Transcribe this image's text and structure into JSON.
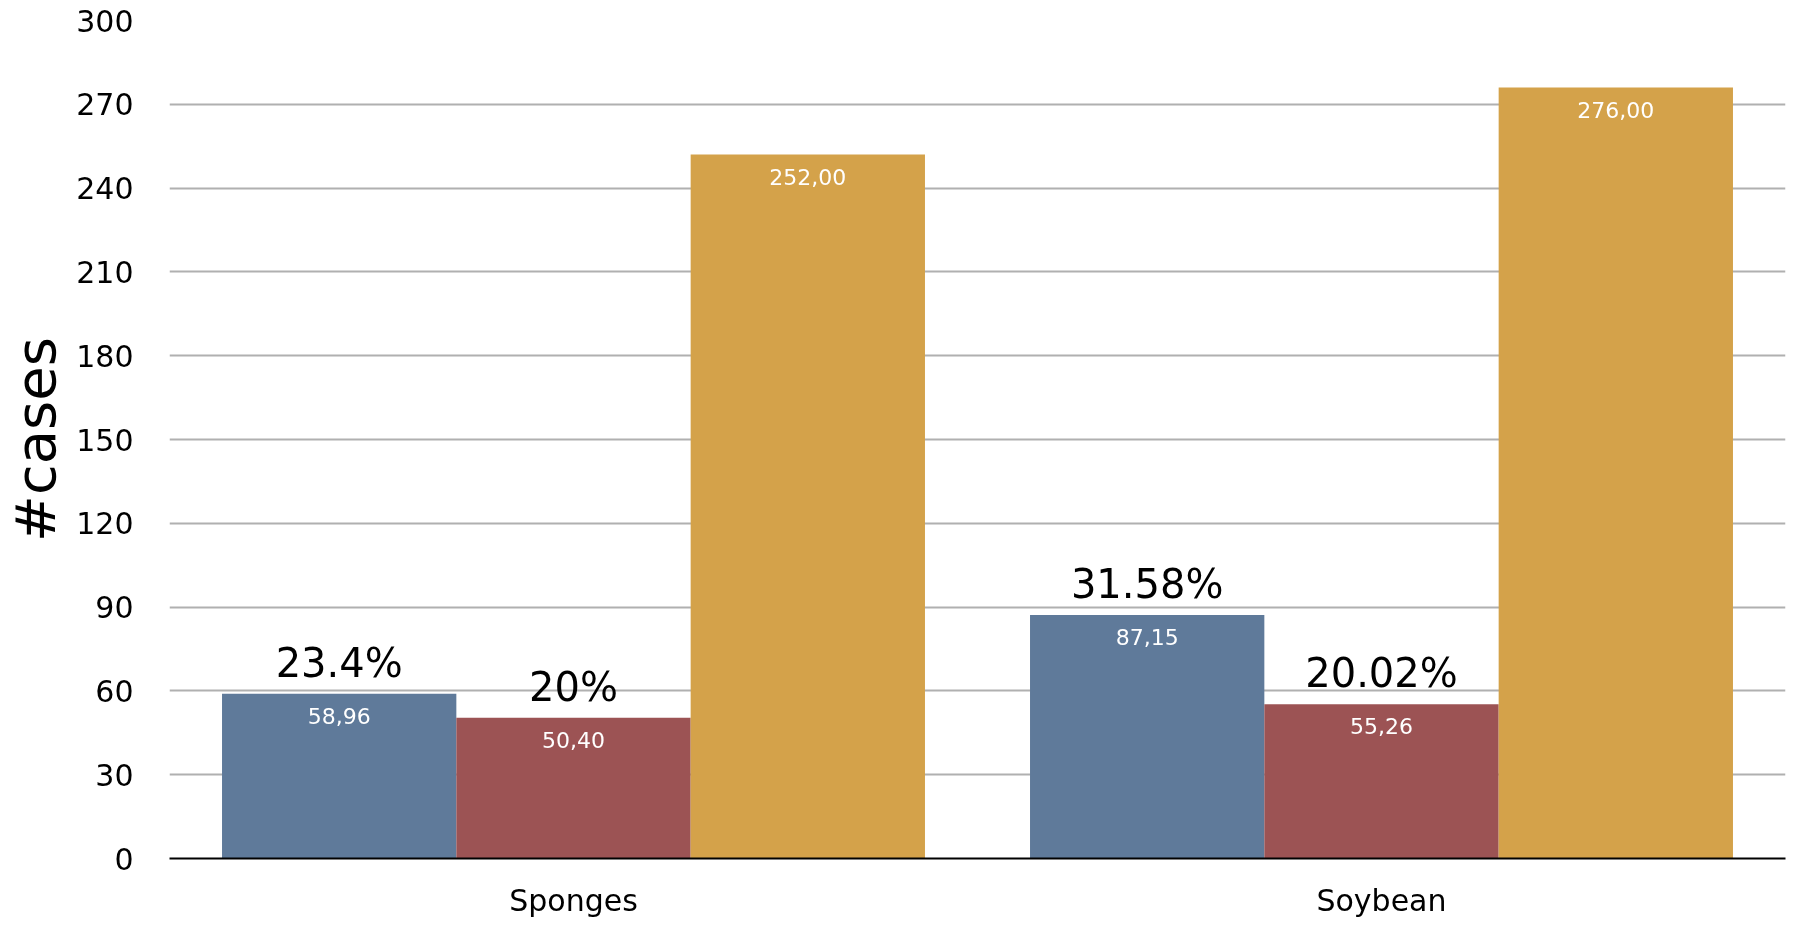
{
  "chart_data": {
    "type": "bar",
    "ylabel": "#cases",
    "categories": [
      "Sponges",
      "Soybean"
    ],
    "series": [
      {
        "color": "#5f7a9a",
        "values": [
          58.96,
          87.15
        ],
        "value_labels": [
          "58,96",
          "87,15"
        ]
      },
      {
        "color": "#9c5354",
        "values": [
          50.4,
          55.26
        ],
        "value_labels": [
          "50,40",
          "55,26"
        ]
      },
      {
        "color": "#d4a24a",
        "values": [
          252.0,
          276.0
        ],
        "value_labels": [
          "252,00",
          "276,00"
        ]
      }
    ],
    "ylim": [
      0,
      300
    ],
    "yticks": [
      0,
      30,
      60,
      90,
      120,
      150,
      180,
      210,
      240,
      270,
      300
    ],
    "grid": "y",
    "annotations": [
      "23.4%",
      "20%",
      "31.58%",
      "20.02%"
    ]
  }
}
